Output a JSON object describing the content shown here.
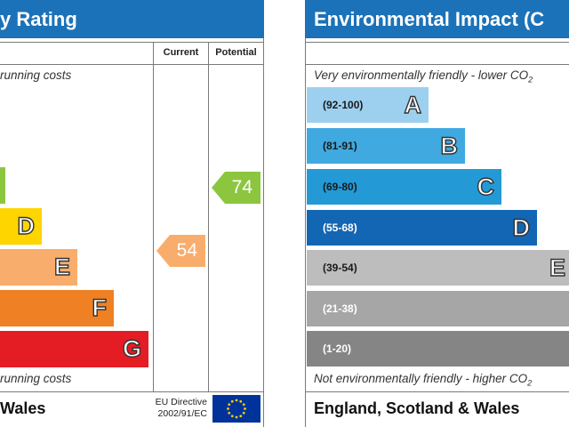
{
  "energy_panel": {
    "title": "y Rating",
    "col_current": "Current",
    "col_potential": "Potential",
    "top_note": "running costs",
    "bottom_note": "running costs",
    "bands": [
      {
        "letter": "",
        "color": "#8cc63f"
      },
      {
        "letter": "D",
        "color": "#ffd500"
      },
      {
        "letter": "E",
        "color": "#f9ad6c"
      },
      {
        "letter": "F",
        "color": "#ef8023"
      },
      {
        "letter": "G",
        "color": "#e31d23"
      }
    ],
    "current_value": "54",
    "current_color": "#f9ad6c",
    "potential_value": "74",
    "potential_color": "#8cc63f",
    "footer": "Wales",
    "eu_line1": "EU Directive",
    "eu_line2": "2002/91/EC"
  },
  "env_panel": {
    "title": "Environmental Impact (C",
    "top_note": "Very environmentally friendly - lower CO",
    "top_note_sub": "2",
    "bottom_note": "Not environmentally friendly - higher CO",
    "bottom_note_sub": "2",
    "bands": [
      {
        "range": "(92-100)",
        "letter": "A",
        "color": "#9dd0ef",
        "text_color": "#1a1a1a"
      },
      {
        "range": "(81-91)",
        "letter": "B",
        "color": "#3fa9e0",
        "text_color": "#1a1a1a"
      },
      {
        "range": "(69-80)",
        "letter": "C",
        "color": "#239ad6",
        "text_color": "#1a1a1a"
      },
      {
        "range": "(55-68)",
        "letter": "D",
        "color": "#1366b3",
        "text_color": "#ffffff"
      },
      {
        "range": "(39-54)",
        "letter": "E",
        "color": "#bdbdbd",
        "text_color": "#1a1a1a"
      },
      {
        "range": "(21-38)",
        "letter": "",
        "color": "#a6a6a6",
        "text_color": "#ffffff"
      },
      {
        "range": "(1-20)",
        "letter": "",
        "color": "#858585",
        "text_color": "#ffffff"
      }
    ],
    "footer": "England, Scotland & Wales"
  }
}
